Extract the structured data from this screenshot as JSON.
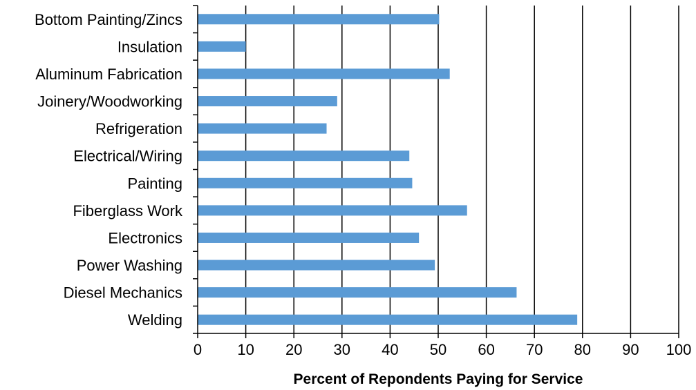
{
  "chart_data": {
    "type": "bar",
    "orientation": "horizontal",
    "title": "",
    "xlabel": "Percent of Repondents  Paying for Service",
    "ylabel": "",
    "xlim": [
      0,
      100
    ],
    "x_ticks": [
      0,
      10,
      20,
      30,
      40,
      50,
      60,
      70,
      80,
      90,
      100
    ],
    "grid": "vertical",
    "legend": "none",
    "bar_color": "#5b9bd5",
    "categories": [
      "Bottom Painting/Zincs",
      "Insulation",
      "Aluminum Fabrication",
      "Joinery/Woodworking",
      "Refrigeration",
      "Electrical/Wiring",
      "Painting",
      "Fiberglass Work",
      "Electronics",
      "Power Washing",
      "Diesel Mechanics",
      "Welding"
    ],
    "values": [
      50.2,
      10,
      52.4,
      29,
      26.8,
      44,
      44.6,
      56,
      46,
      49.3,
      66.3,
      78.9
    ]
  }
}
